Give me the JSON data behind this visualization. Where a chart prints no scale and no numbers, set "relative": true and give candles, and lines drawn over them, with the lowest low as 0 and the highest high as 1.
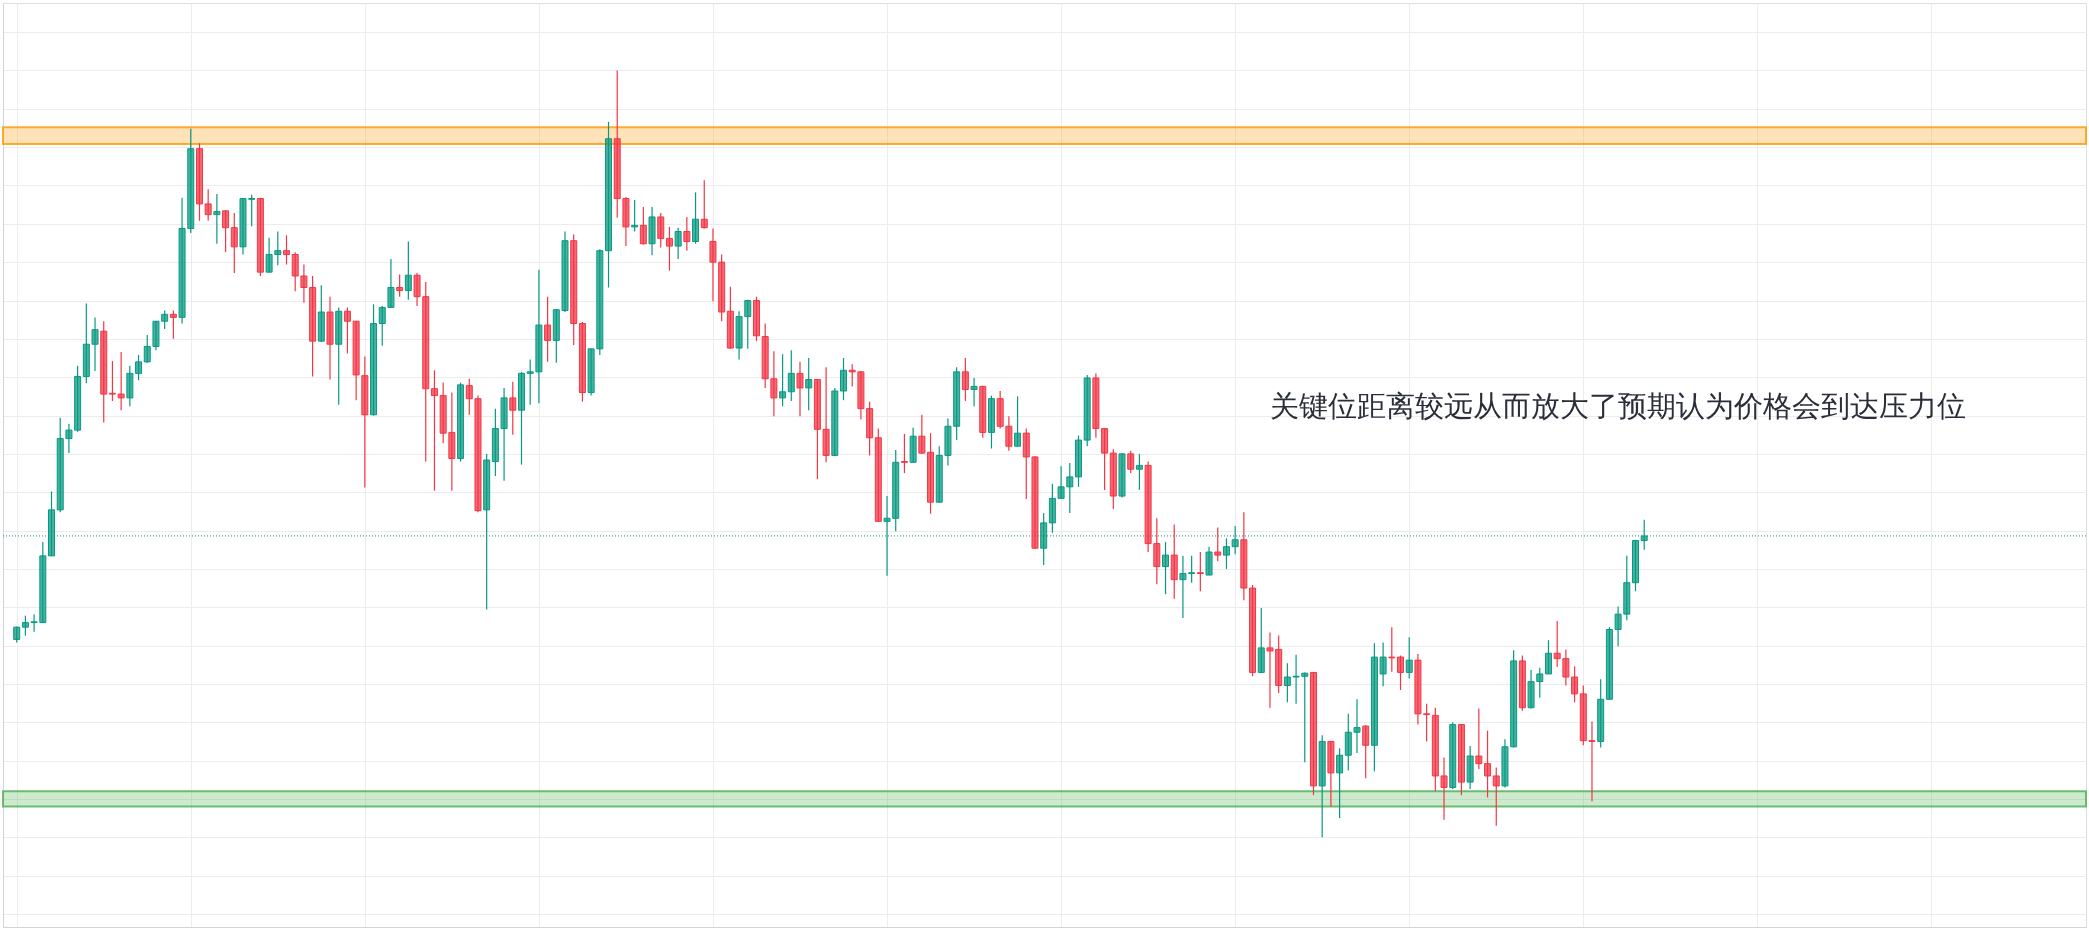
{
  "chart_data": {
    "type": "candlestick",
    "relative": true,
    "grid": true,
    "annotations": [
      "关键位距离较远从而放大了预期认为价格会到达压力位"
    ],
    "bands": [
      {
        "axis": "y",
        "from": 0.904,
        "to": 0.926,
        "color": "#ff9800"
      },
      {
        "axis": "y",
        "from": 0.04,
        "to": 0.06,
        "color": "#4caf50"
      }
    ],
    "ref_lines": [
      {
        "axis": "y",
        "value": 0.393,
        "color": "#089981",
        "line_style": "dotted"
      }
    ],
    "categories": [
      null,
      null,
      null,
      null,
      null,
      null,
      null,
      null,
      null,
      null,
      null,
      null,
      null,
      null,
      null,
      null,
      null,
      null,
      null,
      null,
      null,
      null,
      null,
      null,
      null,
      null,
      null,
      null,
      null,
      null,
      null,
      null,
      null,
      null,
      null,
      null,
      null,
      null,
      null,
      null,
      null,
      null,
      null,
      null,
      null,
      null,
      null,
      null,
      null,
      null,
      null,
      null,
      null,
      null,
      null,
      null,
      null,
      null,
      null,
      null,
      null,
      null,
      null,
      null,
      null,
      null,
      null,
      null,
      null,
      null,
      null,
      null,
      null,
      null,
      null,
      null,
      null,
      null,
      null,
      null,
      null,
      null,
      null,
      null,
      null,
      null,
      null,
      null,
      null,
      null,
      null,
      null,
      null,
      null,
      null,
      null,
      null,
      null,
      null,
      null,
      null,
      null,
      null,
      null,
      null,
      null,
      null,
      null,
      null,
      null,
      null,
      null,
      null,
      null,
      null,
      null,
      null,
      null,
      null,
      null,
      null,
      null,
      null,
      null,
      null,
      null,
      null,
      null,
      null,
      null,
      null,
      null,
      null,
      null,
      null,
      null,
      null,
      null,
      null,
      null,
      null,
      null,
      null,
      null,
      null,
      null,
      null,
      null,
      null,
      null,
      null,
      null,
      null,
      null,
      null,
      null,
      null,
      null,
      null,
      null,
      null,
      null,
      null,
      null,
      null,
      null,
      null,
      null,
      null,
      null,
      null,
      null,
      null,
      null,
      null,
      null,
      null,
      null,
      null,
      null,
      null,
      null,
      null,
      null,
      null,
      null,
      null,
      null
    ],
    "ohlc": [
      [
        0.258,
        0.275,
        0.254,
        0.274
      ],
      [
        0.274,
        0.289,
        0.263,
        0.28
      ],
      [
        0.28,
        0.291,
        0.268,
        0.281
      ],
      [
        0.28,
        0.385,
        0.28,
        0.367
      ],
      [
        0.367,
        0.451,
        0.367,
        0.427
      ],
      [
        0.427,
        0.547,
        0.424,
        0.52
      ],
      [
        0.52,
        0.539,
        0.501,
        0.531
      ],
      [
        0.531,
        0.615,
        0.529,
        0.601
      ],
      [
        0.601,
        0.696,
        0.592,
        0.643
      ],
      [
        0.643,
        0.678,
        0.608,
        0.662
      ],
      [
        0.66,
        0.673,
        0.541,
        0.578
      ],
      [
        0.579,
        0.621,
        0.569,
        0.578
      ],
      [
        0.578,
        0.633,
        0.557,
        0.573
      ],
      [
        0.573,
        0.615,
        0.562,
        0.605
      ],
      [
        0.605,
        0.629,
        0.596,
        0.62
      ],
      [
        0.62,
        0.655,
        0.619,
        0.64
      ],
      [
        0.64,
        0.673,
        0.635,
        0.673
      ],
      [
        0.673,
        0.687,
        0.663,
        0.682
      ],
      [
        0.682,
        0.687,
        0.65,
        0.678
      ],
      [
        0.678,
        0.834,
        0.67,
        0.794
      ],
      [
        0.794,
        0.924,
        0.788,
        0.898
      ],
      [
        0.898,
        0.905,
        0.804,
        0.826
      ],
      [
        0.826,
        0.845,
        0.804,
        0.812
      ],
      [
        0.812,
        0.839,
        0.774,
        0.816
      ],
      [
        0.817,
        0.817,
        0.763,
        0.795
      ],
      [
        0.795,
        0.814,
        0.736,
        0.77
      ],
      [
        0.77,
        0.833,
        0.76,
        0.833
      ],
      [
        0.832,
        0.838,
        0.797,
        0.833
      ],
      [
        0.833,
        0.834,
        0.732,
        0.737
      ],
      [
        0.737,
        0.782,
        0.737,
        0.76
      ],
      [
        0.76,
        0.79,
        0.746,
        0.765
      ],
      [
        0.765,
        0.785,
        0.747,
        0.76
      ],
      [
        0.76,
        0.763,
        0.712,
        0.732
      ],
      [
        0.732,
        0.747,
        0.697,
        0.717
      ],
      [
        0.717,
        0.732,
        0.601,
        0.647
      ],
      [
        0.647,
        0.72,
        0.646,
        0.685
      ],
      [
        0.685,
        0.705,
        0.597,
        0.643
      ],
      [
        0.643,
        0.691,
        0.564,
        0.686
      ],
      [
        0.686,
        0.691,
        0.631,
        0.673
      ],
      [
        0.673,
        0.673,
        0.57,
        0.603
      ],
      [
        0.602,
        0.627,
        0.456,
        0.551
      ],
      [
        0.551,
        0.695,
        0.55,
        0.67
      ],
      [
        0.67,
        0.693,
        0.641,
        0.691
      ],
      [
        0.691,
        0.754,
        0.691,
        0.717
      ],
      [
        0.717,
        0.734,
        0.705,
        0.713
      ],
      [
        0.713,
        0.777,
        0.701,
        0.733
      ],
      [
        0.733,
        0.736,
        0.693,
        0.705
      ],
      [
        0.705,
        0.724,
        0.49,
        0.585
      ],
      [
        0.585,
        0.609,
        0.452,
        0.576
      ],
      [
        0.576,
        0.593,
        0.514,
        0.527
      ],
      [
        0.528,
        0.58,
        0.452,
        0.494
      ],
      [
        0.494,
        0.593,
        0.49,
        0.59
      ],
      [
        0.589,
        0.598,
        0.551,
        0.572
      ],
      [
        0.572,
        0.576,
        0.424,
        0.426
      ],
      [
        0.427,
        0.5,
        0.297,
        0.492
      ],
      [
        0.49,
        0.559,
        0.471,
        0.533
      ],
      [
        0.533,
        0.586,
        0.465,
        0.573
      ],
      [
        0.573,
        0.594,
        0.525,
        0.557
      ],
      [
        0.557,
        0.607,
        0.486,
        0.605
      ],
      [
        0.605,
        0.623,
        0.564,
        0.607
      ],
      [
        0.607,
        0.74,
        0.566,
        0.668
      ],
      [
        0.668,
        0.705,
        0.62,
        0.648
      ],
      [
        0.648,
        0.689,
        0.619,
        0.688
      ],
      [
        0.687,
        0.79,
        0.685,
        0.778
      ],
      [
        0.778,
        0.786,
        0.642,
        0.67
      ],
      [
        0.67,
        0.672,
        0.568,
        0.58
      ],
      [
        0.58,
        0.637,
        0.576,
        0.637
      ],
      [
        0.637,
        0.767,
        0.629,
        0.765
      ],
      [
        0.765,
        0.933,
        0.717,
        0.911
      ],
      [
        0.911,
        1.0,
        0.808,
        0.833
      ],
      [
        0.833,
        0.835,
        0.771,
        0.796
      ],
      [
        0.796,
        0.831,
        0.79,
        0.798
      ],
      [
        0.798,
        0.822,
        0.773,
        0.774
      ],
      [
        0.774,
        0.822,
        0.759,
        0.809
      ],
      [
        0.809,
        0.814,
        0.769,
        0.781
      ],
      [
        0.781,
        0.796,
        0.739,
        0.771
      ],
      [
        0.771,
        0.795,
        0.754,
        0.79
      ],
      [
        0.79,
        0.809,
        0.765,
        0.777
      ],
      [
        0.777,
        0.841,
        0.774,
        0.806
      ],
      [
        0.806,
        0.857,
        0.794,
        0.795
      ],
      [
        0.777,
        0.794,
        0.699,
        0.75
      ],
      [
        0.75,
        0.76,
        0.673,
        0.685
      ],
      [
        0.686,
        0.718,
        0.637,
        0.638
      ],
      [
        0.638,
        0.686,
        0.623,
        0.679
      ],
      [
        0.679,
        0.701,
        0.637,
        0.7
      ],
      [
        0.7,
        0.705,
        0.647,
        0.654
      ],
      [
        0.653,
        0.67,
        0.586,
        0.598
      ],
      [
        0.598,
        0.634,
        0.549,
        0.573
      ],
      [
        0.573,
        0.63,
        0.562,
        0.581
      ],
      [
        0.581,
        0.635,
        0.569,
        0.605
      ],
      [
        0.605,
        0.62,
        0.549,
        0.586
      ],
      [
        0.586,
        0.625,
        0.557,
        0.597
      ],
      [
        0.597,
        0.597,
        0.467,
        0.532
      ],
      [
        0.532,
        0.613,
        0.489,
        0.498
      ],
      [
        0.498,
        0.586,
        0.497,
        0.582
      ],
      [
        0.582,
        0.625,
        0.57,
        0.609
      ],
      [
        0.609,
        0.617,
        0.588,
        0.607
      ],
      [
        0.607,
        0.608,
        0.545,
        0.559
      ],
      [
        0.559,
        0.568,
        0.498,
        0.521
      ],
      [
        0.521,
        0.533,
        0.412,
        0.412
      ],
      [
        0.412,
        0.445,
        0.341,
        0.416
      ],
      [
        0.416,
        0.505,
        0.399,
        0.489
      ],
      [
        0.49,
        0.526,
        0.475,
        0.489
      ],
      [
        0.489,
        0.534,
        0.489,
        0.523
      ],
      [
        0.523,
        0.551,
        0.5,
        0.501
      ],
      [
        0.502,
        0.527,
        0.422,
        0.437
      ],
      [
        0.437,
        0.51,
        0.437,
        0.498
      ],
      [
        0.498,
        0.546,
        0.485,
        0.536
      ],
      [
        0.536,
        0.613,
        0.518,
        0.607
      ],
      [
        0.607,
        0.625,
        0.569,
        0.584
      ],
      [
        0.584,
        0.599,
        0.562,
        0.588
      ],
      [
        0.588,
        0.589,
        0.521,
        0.528
      ],
      [
        0.528,
        0.576,
        0.507,
        0.572
      ],
      [
        0.572,
        0.582,
        0.533,
        0.536
      ],
      [
        0.536,
        0.549,
        0.504,
        0.51
      ],
      [
        0.51,
        0.575,
        0.51,
        0.527
      ],
      [
        0.527,
        0.533,
        0.441,
        0.496
      ],
      [
        0.496,
        0.497,
        0.376,
        0.377
      ],
      [
        0.377,
        0.423,
        0.355,
        0.41
      ],
      [
        0.41,
        0.461,
        0.397,
        0.442
      ],
      [
        0.442,
        0.484,
        0.442,
        0.457
      ],
      [
        0.457,
        0.488,
        0.423,
        0.47
      ],
      [
        0.47,
        0.524,
        0.457,
        0.518
      ],
      [
        0.518,
        0.603,
        0.51,
        0.599
      ],
      [
        0.599,
        0.605,
        0.521,
        0.533
      ],
      [
        0.533,
        0.533,
        0.453,
        0.501
      ],
      [
        0.501,
        0.506,
        0.428,
        0.445
      ],
      [
        0.445,
        0.501,
        0.443,
        0.5
      ],
      [
        0.5,
        0.504,
        0.475,
        0.48
      ],
      [
        0.48,
        0.5,
        0.453,
        0.485
      ],
      [
        0.485,
        0.49,
        0.372,
        0.383
      ],
      [
        0.383,
        0.416,
        0.33,
        0.353
      ],
      [
        0.353,
        0.385,
        0.317,
        0.368
      ],
      [
        0.368,
        0.408,
        0.311,
        0.336
      ],
      [
        0.336,
        0.367,
        0.286,
        0.344
      ],
      [
        0.344,
        0.367,
        0.332,
        0.345
      ],
      [
        0.345,
        0.372,
        0.321,
        0.344
      ],
      [
        0.342,
        0.379,
        0.342,
        0.372
      ],
      [
        0.372,
        0.404,
        0.36,
        0.368
      ],
      [
        0.368,
        0.39,
        0.35,
        0.379
      ],
      [
        0.379,
        0.406,
        0.369,
        0.388
      ],
      [
        0.388,
        0.424,
        0.309,
        0.325
      ],
      [
        0.325,
        0.329,
        0.21,
        0.215
      ],
      [
        0.215,
        0.299,
        0.215,
        0.247
      ],
      [
        0.247,
        0.267,
        0.169,
        0.243
      ],
      [
        0.245,
        0.263,
        0.188,
        0.198
      ],
      [
        0.198,
        0.227,
        0.176,
        0.209
      ],
      [
        0.209,
        0.238,
        0.174,
        0.21
      ],
      [
        0.21,
        0.215,
        0.098,
        0.214
      ],
      [
        0.215,
        0.215,
        0.055,
        0.067
      ],
      [
        0.067,
        0.133,
        0.0,
        0.125
      ],
      [
        0.125,
        0.125,
        0.04,
        0.084
      ],
      [
        0.084,
        0.116,
        0.025,
        0.107
      ],
      [
        0.107,
        0.161,
        0.087,
        0.137
      ],
      [
        0.137,
        0.18,
        0.11,
        0.143
      ],
      [
        0.145,
        0.146,
        0.077,
        0.12
      ],
      [
        0.12,
        0.253,
        0.086,
        0.235
      ],
      [
        0.213,
        0.254,
        0.197,
        0.235
      ],
      [
        0.235,
        0.274,
        0.216,
        0.234
      ],
      [
        0.235,
        0.237,
        0.192,
        0.215
      ],
      [
        0.215,
        0.261,
        0.207,
        0.231
      ],
      [
        0.231,
        0.239,
        0.147,
        0.161
      ],
      [
        0.161,
        0.174,
        0.125,
        0.16
      ],
      [
        0.159,
        0.169,
        0.06,
        0.08
      ],
      [
        0.08,
        0.104,
        0.023,
        0.065
      ],
      [
        0.065,
        0.15,
        0.063,
        0.147
      ],
      [
        0.147,
        0.147,
        0.055,
        0.072
      ],
      [
        0.072,
        0.119,
        0.063,
        0.106
      ],
      [
        0.106,
        0.168,
        0.089,
        0.096
      ],
      [
        0.096,
        0.139,
        0.052,
        0.08
      ],
      [
        0.08,
        0.091,
        0.015,
        0.067
      ],
      [
        0.067,
        0.128,
        0.065,
        0.118
      ],
      [
        0.118,
        0.244,
        0.117,
        0.23
      ],
      [
        0.23,
        0.237,
        0.165,
        0.169
      ],
      [
        0.169,
        0.218,
        0.168,
        0.203
      ],
      [
        0.203,
        0.221,
        0.182,
        0.213
      ],
      [
        0.213,
        0.257,
        0.213,
        0.24
      ],
      [
        0.24,
        0.282,
        0.222,
        0.233
      ],
      [
        0.233,
        0.245,
        0.198,
        0.209
      ],
      [
        0.209,
        0.223,
        0.176,
        0.187
      ],
      [
        0.187,
        0.198,
        0.12,
        0.126
      ],
      [
        0.126,
        0.151,
        0.047,
        0.125
      ],
      [
        0.125,
        0.206,
        0.117,
        0.18
      ],
      [
        0.18,
        0.274,
        0.18,
        0.271
      ],
      [
        0.271,
        0.301,
        0.249,
        0.291
      ],
      [
        0.291,
        0.367,
        0.283,
        0.332
      ],
      [
        0.332,
        0.388,
        0.321,
        0.387
      ],
      [
        0.387,
        0.414,
        0.375,
        0.393
      ]
    ],
    "colors": [
      "#089981",
      "#089981",
      "#089981",
      "#089981",
      "#089981",
      "#089981",
      "#089981",
      "#089981",
      "#089981",
      "#089981",
      "#f23645",
      "#f23645",
      "#f23645",
      "#089981",
      "#089981",
      "#089981",
      "#089981",
      "#089981",
      "#f23645",
      "#089981",
      "#089981",
      "#f23645",
      "#f23645",
      "#089981",
      "#f23645",
      "#f23645",
      "#089981",
      "#089981",
      "#f23645",
      "#089981",
      "#089981",
      "#f23645",
      "#f23645",
      "#f23645",
      "#f23645",
      "#089981",
      "#f23645",
      "#089981",
      "#f23645",
      "#f23645",
      "#f23645",
      "#089981",
      "#089981",
      "#089981",
      "#f23645",
      "#089981",
      "#f23645",
      "#f23645",
      "#f23645",
      "#f23645",
      "#f23645",
      "#089981",
      "#f23645",
      "#f23645",
      "#089981",
      "#089981",
      "#089981",
      "#f23645",
      "#089981",
      "#089981",
      "#089981",
      "#f23645",
      "#089981",
      "#089981",
      "#f23645",
      "#f23645",
      "#089981",
      "#089981",
      "#089981",
      "#f23645",
      "#f23645",
      "#089981",
      "#f23645",
      "#089981",
      "#f23645",
      "#f23645",
      "#089981",
      "#f23645",
      "#089981",
      "#f23645",
      "#f23645",
      "#f23645",
      "#f23645",
      "#089981",
      "#089981",
      "#f23645",
      "#f23645",
      "#f23645",
      "#089981",
      "#089981",
      "#f23645",
      "#089981",
      "#f23645",
      "#f23645",
      "#089981",
      "#089981",
      "#f23645",
      "#f23645",
      "#f23645",
      "#f23645",
      "#089981",
      "#089981",
      "#f23645",
      "#089981",
      "#f23645",
      "#f23645",
      "#089981",
      "#089981",
      "#089981",
      "#f23645",
      "#089981",
      "#f23645",
      "#089981",
      "#f23645",
      "#f23645",
      "#089981",
      "#f23645",
      "#f23645",
      "#089981",
      "#089981",
      "#089981",
      "#089981",
      "#089981",
      "#089981",
      "#f23645",
      "#f23645",
      "#f23645",
      "#089981",
      "#f23645",
      "#089981",
      "#f23645",
      "#f23645",
      "#089981",
      "#f23645",
      "#089981",
      "#089981",
      "#f23645",
      "#089981",
      "#f23645",
      "#089981",
      "#089981",
      "#f23645",
      "#f23645",
      "#089981",
      "#f23645",
      "#f23645",
      "#089981",
      "#089981",
      "#089981",
      "#f23645",
      "#089981",
      "#f23645",
      "#089981",
      "#089981",
      "#089981",
      "#f23645",
      "#089981",
      "#089981",
      "#f23645",
      "#f23645",
      "#089981",
      "#f23645",
      "#f23645",
      "#f23645",
      "#f23645",
      "#089981",
      "#f23645",
      "#089981",
      "#f23645",
      "#f23645",
      "#f23645",
      "#089981",
      "#089981",
      "#f23645",
      "#089981",
      "#089981",
      "#089981",
      "#f23645",
      "#f23645",
      "#f23645",
      "#f23645",
      "#f23645",
      "#089981",
      "#089981",
      "#089981",
      "#089981",
      "#089981",
      "#089981"
    ]
  }
}
